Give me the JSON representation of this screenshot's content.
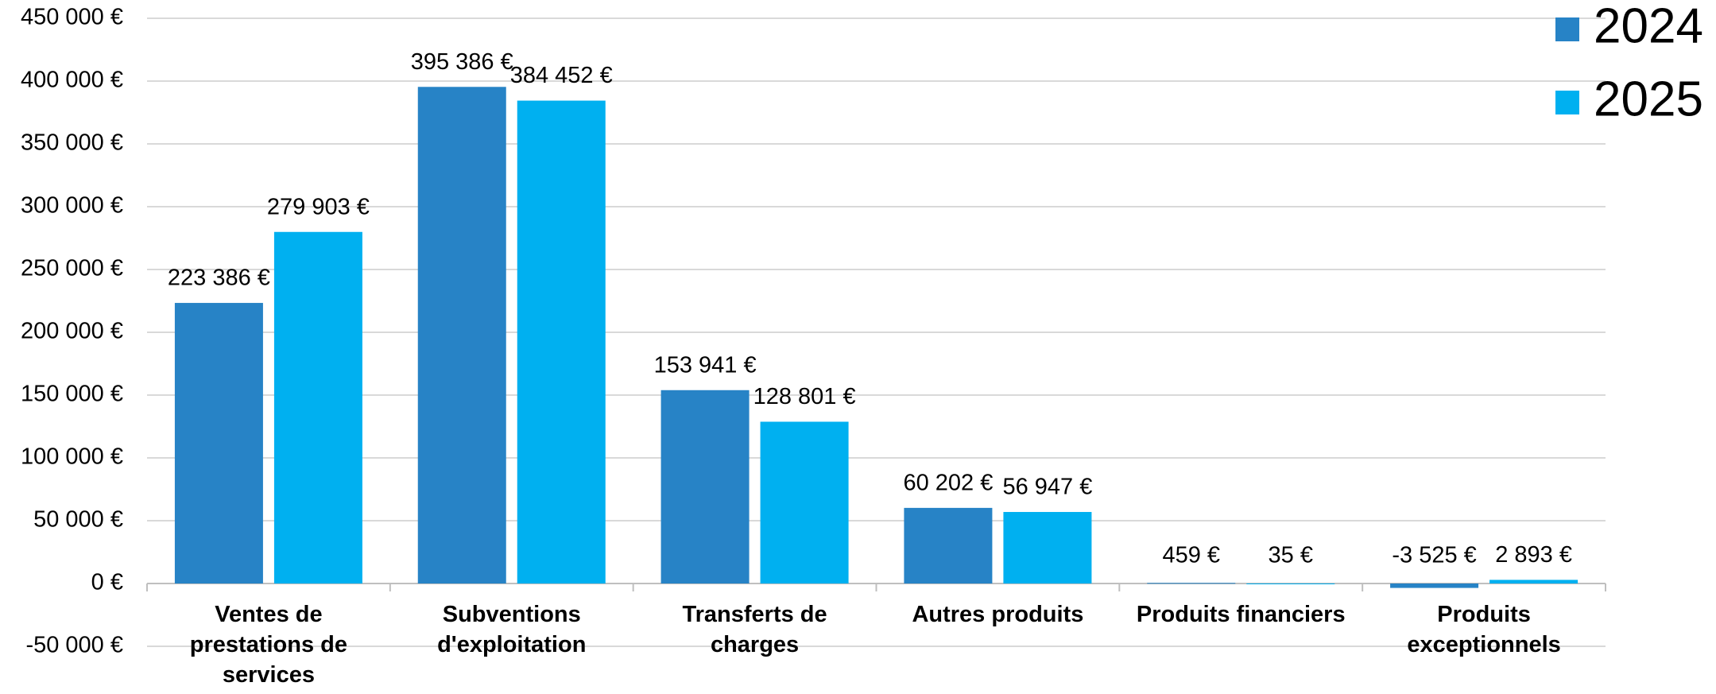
{
  "chart_data": {
    "type": "bar",
    "categories": [
      "Ventes de prestations de services",
      "Subventions d'exploitation",
      "Transferts de charges",
      "Autres produits",
      "Produits financiers",
      "Produits exceptionnels"
    ],
    "series": [
      {
        "name": "2024",
        "color": "#2783c6",
        "values": [
          223386,
          395386,
          153941,
          60202,
          459,
          -3525
        ],
        "value_labels": [
          "223 386 €",
          "395 386 €",
          "153 941 €",
          "60 202 €",
          "459 €",
          "-3 525 €"
        ]
      },
      {
        "name": "2025",
        "color": "#00b0f0",
        "values": [
          279903,
          384452,
          128801,
          56947,
          35,
          2893
        ],
        "value_labels": [
          "279 903 €",
          "384 452 €",
          "128 801 €",
          "56 947 €",
          "35 €",
          "2 893 €"
        ]
      }
    ],
    "ylim": [
      -50000,
      450000
    ],
    "yticks": [
      {
        "value": -50000,
        "label": "-50 000 €"
      },
      {
        "value": 0,
        "label": "0 €"
      },
      {
        "value": 50000,
        "label": "50 000 €"
      },
      {
        "value": 100000,
        "label": "100 000 €"
      },
      {
        "value": 150000,
        "label": "150 000 €"
      },
      {
        "value": 200000,
        "label": "200 000 €"
      },
      {
        "value": 250000,
        "label": "250 000 €"
      },
      {
        "value": 300000,
        "label": "300 000 €"
      },
      {
        "value": 350000,
        "label": "350 000 €"
      },
      {
        "value": 400000,
        "label": "400 000 €"
      },
      {
        "value": 450000,
        "label": "450 000 €"
      }
    ],
    "grid": true,
    "legend": "top-right"
  }
}
